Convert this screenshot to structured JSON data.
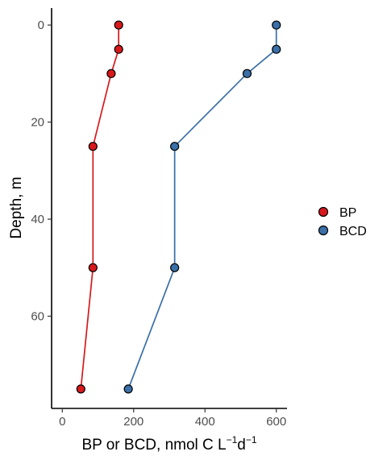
{
  "chart_data": {
    "type": "line",
    "xlabel": "BP or BCD, nmol C L",
    "xlabel_sup1": "−1",
    "xlabel_mid": "d",
    "xlabel_sup2": "−1",
    "ylabel": "Depth, m",
    "xlim": [
      -30,
      630
    ],
    "ylim": [
      -3.5,
      79
    ],
    "y_reversed": true,
    "x_ticks": [
      0,
      200,
      400,
      600
    ],
    "y_ticks": [
      0,
      20,
      40,
      60
    ],
    "grid": false,
    "legend_position": "right",
    "series": [
      {
        "name": "BP",
        "color": "#d7191c",
        "points": [
          {
            "x": 158,
            "y": 0
          },
          {
            "x": 158,
            "y": 5
          },
          {
            "x": 137,
            "y": 10
          },
          {
            "x": 86,
            "y": 25
          },
          {
            "x": 86,
            "y": 50
          },
          {
            "x": 52,
            "y": 75
          }
        ]
      },
      {
        "name": "BCD",
        "color": "#3a6fa8",
        "points": [
          {
            "x": 600,
            "y": 0
          },
          {
            "x": 600,
            "y": 5
          },
          {
            "x": 518,
            "y": 10
          },
          {
            "x": 315,
            "y": 25
          },
          {
            "x": 315,
            "y": 50
          },
          {
            "x": 185,
            "y": 75
          }
        ]
      }
    ]
  }
}
